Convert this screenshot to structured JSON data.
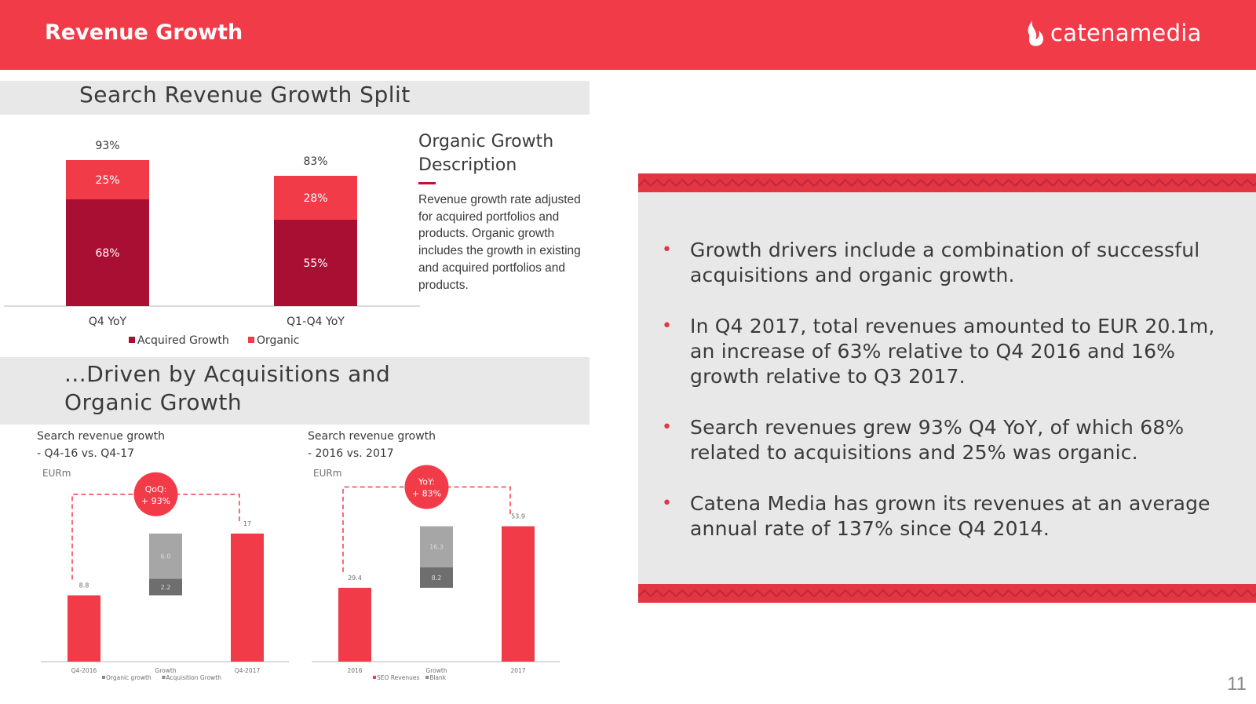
{
  "header": {
    "title": "Revenue Growth",
    "brand": "catenamedia"
  },
  "section1": {
    "title": "Search Revenue Growth Split"
  },
  "section2": {
    "title_line1": "...Driven by Acquisitions and",
    "title_line2": "Organic Growth"
  },
  "organic": {
    "title_line1": "Organic Growth",
    "title_line2": "Description",
    "body": "Revenue growth rate adjusted for acquired portfolios and products. Organic growth includes the growth in existing and acquired portfolios and products."
  },
  "bullets": [
    "Growth drivers include a combination of successful acquisitions and organic growth.",
    "In Q4 2017, total revenues amounted to EUR 20.1m, an increase of 63% relative to Q4 2016 and 16% growth relative to Q3 2017.",
    "Search revenues grew 93% Q4 YoY, of which 68% related to acquisitions and 25% was organic.",
    "Catena Media has grown its revenues at an average annual rate of 137% since Q4 2014."
  ],
  "page_number": "11",
  "colors": {
    "red": "#f23b48",
    "dark_red": "#a80f33",
    "grey": "#a6a6a6",
    "dark_grey": "#6e6e6e",
    "panel": "#e8e8e8"
  },
  "icons": [
    "flame-logo-icon",
    "bullet-icon"
  ],
  "chart_data": [
    {
      "type": "bar",
      "stacked": true,
      "categories": [
        "Q4 YoY",
        "Q1-Q4 YoY"
      ],
      "series": [
        {
          "name": "Acquired Growth",
          "values": [
            68,
            55
          ],
          "labels": [
            "68%",
            "55%"
          ],
          "color": "#a80f33"
        },
        {
          "name": "Organic",
          "values": [
            25,
            28
          ],
          "labels": [
            "25%",
            "28%"
          ],
          "color": "#f23b48"
        }
      ],
      "totals": [
        93,
        83
      ],
      "total_labels": [
        "93%",
        "83%"
      ],
      "ylim": [
        0,
        100
      ]
    },
    {
      "type": "bar",
      "waterfall": true,
      "title_line1": "Search revenue growth",
      "title_line2": "- Q4-16 vs. Q4-17",
      "unit": "EURm",
      "categories": [
        "Q4-2016",
        "Growth",
        "Q4-2017"
      ],
      "start": 8.8,
      "start_label": "8.8",
      "growth_parts": [
        {
          "name": "Organic growth",
          "value": 2.2,
          "label": "2.2",
          "color": "#6e6e6e"
        },
        {
          "name": "Acquisition Growth",
          "value": 6.0,
          "label": "6.0",
          "color": "#a6a6a6"
        }
      ],
      "end": 17,
      "end_label": "17",
      "badge_line1": "QoQ:",
      "badge_line2": "+ 93%",
      "legend": [
        "Organic growth",
        "Acquisition Growth"
      ],
      "ylim": [
        0,
        25
      ]
    },
    {
      "type": "bar",
      "waterfall": true,
      "title_line1": "Search revenue growth",
      "title_line2": "- 2016 vs. 2017",
      "unit": "EURm",
      "categories": [
        "2016",
        "Growth",
        "2017"
      ],
      "start": 29.4,
      "start_label": "29.4",
      "growth_parts": [
        {
          "name": "Organic growth",
          "value": 8.2,
          "label": "8.2",
          "color": "#6e6e6e"
        },
        {
          "name": "Acquisition Growth",
          "value": 16.3,
          "label": "16.3",
          "color": "#a6a6a6"
        }
      ],
      "end": 53.9,
      "end_label": "53.9",
      "badge_line1": "YoY:",
      "badge_line2": "+ 83%",
      "legend": [
        "SEO Revenues",
        "Blank"
      ],
      "ylim": [
        0,
        75
      ]
    }
  ]
}
